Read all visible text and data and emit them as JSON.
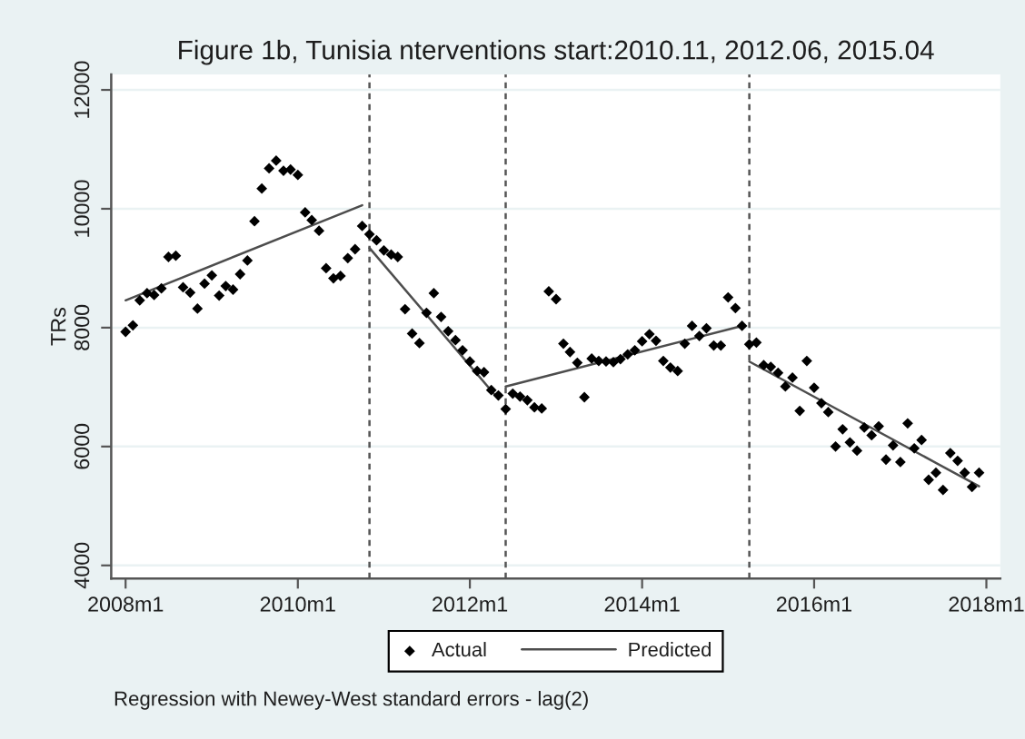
{
  "chart_data": {
    "type": "scatter",
    "title": "Figure 1b, Tunisia nterventions start:2010.11, 2012.06, 2015.04",
    "ylabel": "TRs",
    "annotations": [
      "Regression with Newey-West standard errors - lag(2)"
    ],
    "x": [
      "2008-01",
      "2008-02",
      "2008-03",
      "2008-04",
      "2008-05",
      "2008-06",
      "2008-07",
      "2008-08",
      "2008-09",
      "2008-10",
      "2008-11",
      "2008-12",
      "2009-01",
      "2009-02",
      "2009-03",
      "2009-04",
      "2009-05",
      "2009-06",
      "2009-07",
      "2009-08",
      "2009-09",
      "2009-10",
      "2009-11",
      "2009-12",
      "2010-01",
      "2010-02",
      "2010-03",
      "2010-04",
      "2010-05",
      "2010-06",
      "2010-07",
      "2010-08",
      "2010-09",
      "2010-10",
      "2010-11",
      "2010-12",
      "2011-01",
      "2011-02",
      "2011-03",
      "2011-04",
      "2011-05",
      "2011-06",
      "2011-07",
      "2011-08",
      "2011-09",
      "2011-10",
      "2011-11",
      "2011-12",
      "2012-01",
      "2012-02",
      "2012-03",
      "2012-04",
      "2012-05",
      "2012-06",
      "2012-07",
      "2012-08",
      "2012-09",
      "2012-10",
      "2012-11",
      "2012-12",
      "2013-01",
      "2013-02",
      "2013-03",
      "2013-04",
      "2013-05",
      "2013-06",
      "2013-07",
      "2013-08",
      "2013-09",
      "2013-10",
      "2013-11",
      "2013-12",
      "2014-01",
      "2014-02",
      "2014-03",
      "2014-04",
      "2014-05",
      "2014-06",
      "2014-07",
      "2014-08",
      "2014-09",
      "2014-10",
      "2014-11",
      "2014-12",
      "2015-01",
      "2015-02",
      "2015-03",
      "2015-04",
      "2015-05",
      "2015-06",
      "2015-07",
      "2015-08",
      "2015-09",
      "2015-10",
      "2015-11",
      "2015-12",
      "2016-01",
      "2016-02",
      "2016-03",
      "2016-04",
      "2016-05",
      "2016-06",
      "2016-07",
      "2016-08",
      "2016-09",
      "2016-10",
      "2016-11",
      "2016-12",
      "2017-01",
      "2017-02",
      "2017-03",
      "2017-04",
      "2017-05",
      "2017-06",
      "2017-07",
      "2017-08",
      "2017-09",
      "2017-10",
      "2017-11",
      "2017-12"
    ],
    "series": [
      {
        "name": "Actual",
        "marker": "diamond",
        "color": "#000000",
        "values": [
          7930,
          8040,
          8460,
          8580,
          8550,
          8660,
          9190,
          9210,
          8680,
          8590,
          8320,
          8740,
          8880,
          8540,
          8700,
          8640,
          8900,
          9130,
          9790,
          10340,
          10680,
          10810,
          10640,
          10660,
          10570,
          9940,
          9810,
          9630,
          9000,
          8830,
          8870,
          9170,
          9320,
          9710,
          9570,
          9470,
          9300,
          9230,
          9190,
          8310,
          7900,
          7740,
          8250,
          8580,
          8180,
          7940,
          7790,
          7620,
          7430,
          7270,
          7250,
          6950,
          6860,
          6630,
          6890,
          6840,
          6780,
          6660,
          6640,
          8610,
          8480,
          7730,
          7590,
          7410,
          6830,
          7480,
          7440,
          7430,
          7420,
          7470,
          7550,
          7620,
          7770,
          7890,
          7780,
          7440,
          7330,
          7270,
          7730,
          8030,
          7860,
          7990,
          7700,
          7700,
          8510,
          8330,
          8030,
          7720,
          7750,
          7370,
          7340,
          7240,
          7010,
          7160,
          6600,
          7440,
          6990,
          6730,
          6580,
          6000,
          6290,
          6070,
          5930,
          6320,
          6190,
          6340,
          5780,
          6020,
          5740,
          6390,
          5970,
          6110,
          5440,
          5560,
          5270,
          5890,
          5760,
          5560,
          5320,
          5560
        ]
      },
      {
        "name": "Predicted",
        "type": "line",
        "line_style": "solid",
        "color": "#4d4d4d",
        "x": [
          "2008-01",
          "2010-10"
        ],
        "values": [
          8460,
          10060
        ]
      },
      {
        "type": "line",
        "line_style": "solid",
        "color": "#4d4d4d",
        "x": [
          "2010-11",
          "2012-05"
        ],
        "values": [
          9340,
          6800
        ]
      },
      {
        "type": "line",
        "line_style": "solid",
        "color": "#4d4d4d",
        "x": [
          "2012-06",
          "2015-03"
        ],
        "values": [
          7010,
          8030
        ]
      },
      {
        "type": "line",
        "line_style": "solid",
        "color": "#4d4d4d",
        "x": [
          "2015-04",
          "2017-12"
        ],
        "values": [
          7430,
          5330
        ]
      }
    ],
    "xlim": [
      "2007-11",
      "2018-03"
    ],
    "xticks": [
      {
        "value": "2008-01",
        "label": "2008m1"
      },
      {
        "value": "2010-01",
        "label": "2010m1"
      },
      {
        "value": "2012-01",
        "label": "2012m1"
      },
      {
        "value": "2014-01",
        "label": "2014m1"
      },
      {
        "value": "2016-01",
        "label": "2016m1"
      },
      {
        "value": "2018-01",
        "label": "2018m1"
      }
    ],
    "ylim": [
      3780,
      12260
    ],
    "yticks": [
      4000,
      6000,
      8000,
      10000,
      12000
    ],
    "ref_lines": [
      {
        "axis": "x",
        "value": "2010-11",
        "color": "#555555",
        "line_style": "dashed"
      },
      {
        "axis": "x",
        "value": "2012-06",
        "color": "#555555",
        "line_style": "dashed"
      },
      {
        "axis": "x",
        "value": "2015-04",
        "color": "#555555",
        "line_style": "dashed"
      }
    ],
    "grid": "y",
    "legend": "bottom"
  }
}
